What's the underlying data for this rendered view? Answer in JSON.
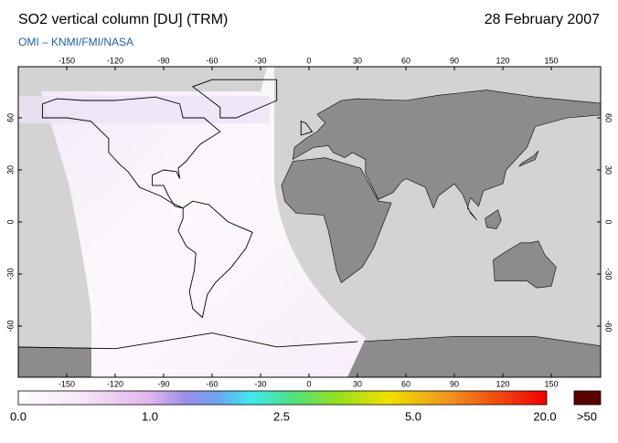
{
  "header": {
    "title": "SO2 vertical column [DU] (TRM)",
    "date": "28 February 2007",
    "subtitle": "OMI  –  KNMI/FMI/NASA"
  },
  "map": {
    "lon_ticks": [
      -150,
      -120,
      -90,
      -60,
      -30,
      0,
      30,
      60,
      90,
      120,
      150
    ],
    "lat_ticks": [
      -60,
      -30,
      0,
      30,
      60
    ]
  },
  "colorbar": {
    "labels": [
      "0.0",
      "1.0",
      "2.5",
      "5.0",
      "20.0"
    ],
    "overflow_label": ">50"
  }
}
